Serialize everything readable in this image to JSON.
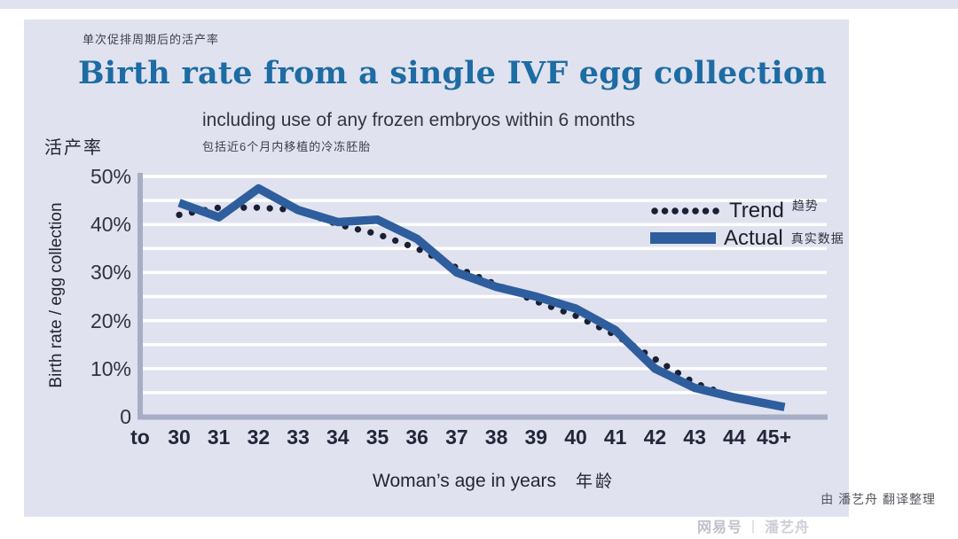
{
  "header": {
    "title_zh": "单次促排周期后的活产率",
    "title": "Birth rate from a single IVF egg collection",
    "subtitle": "including use of any frozen embryos within 6 months",
    "subtitle_zh": "包括近6个月内移植的冷冻胚胎"
  },
  "chart": {
    "y_axis": {
      "title_zh": "活产率",
      "title": "Birth rate / egg collection",
      "tick_labels": [
        "50%",
        "40%",
        "30%",
        "20%",
        "10%",
        "0"
      ]
    },
    "x_axis": {
      "title": "Woman’s age in years",
      "title_zh": "年龄",
      "tick_labels": [
        "to",
        "30",
        "31",
        "32",
        "33",
        "34",
        "35",
        "36",
        "37",
        "38",
        "39",
        "40",
        "41",
        "42",
        "43",
        "44",
        "45+"
      ]
    }
  },
  "legend": {
    "items": [
      {
        "label": "Trend",
        "label_zh": "趋势"
      },
      {
        "label": "Actual",
        "label_zh": "真实数据"
      }
    ]
  },
  "footer": {
    "credit": "由 潘艺舟 翻译整理",
    "watermark_platform": "网易号",
    "watermark_separator": "丨",
    "watermark_author": "潘艺舟"
  },
  "colors": {
    "panel_bg": "#e0e2ef",
    "title_blue": "#1d6ca3",
    "grid": "#ffffff",
    "axis": "#a8adc6",
    "actual_line": "#2e5e9d",
    "trend_dots": "#1a1f33"
  },
  "chart_data": {
    "type": "line",
    "title": "Birth rate from a single IVF egg collection",
    "subtitle": "including use of any frozen embryos within 6 months",
    "xlabel": "Woman’s age in years",
    "ylabel": "Birth rate / egg collection",
    "categories": [
      "to 30",
      "31",
      "32",
      "33",
      "34",
      "35",
      "36",
      "37",
      "38",
      "39",
      "40",
      "41",
      "42",
      "43",
      "44",
      "45+"
    ],
    "series": [
      {
        "name": "Trend",
        "style": "dotted",
        "color": "#1a1f33",
        "values": [
          42,
          43.5,
          43.5,
          43,
          40,
          38,
          35,
          31,
          27.5,
          24,
          21,
          17,
          12,
          7,
          4,
          2
        ]
      },
      {
        "name": "Actual",
        "style": "solid",
        "color": "#2e5e9d",
        "values": [
          44.5,
          41.5,
          47.5,
          43,
          40.5,
          41,
          37,
          30,
          27,
          25,
          22.5,
          18,
          10,
          6,
          4,
          2
        ]
      }
    ],
    "ylim": [
      0,
      50
    ],
    "grid": true,
    "grid_interval": 5,
    "y_tick_interval": 10,
    "legend_position": "upper right"
  }
}
